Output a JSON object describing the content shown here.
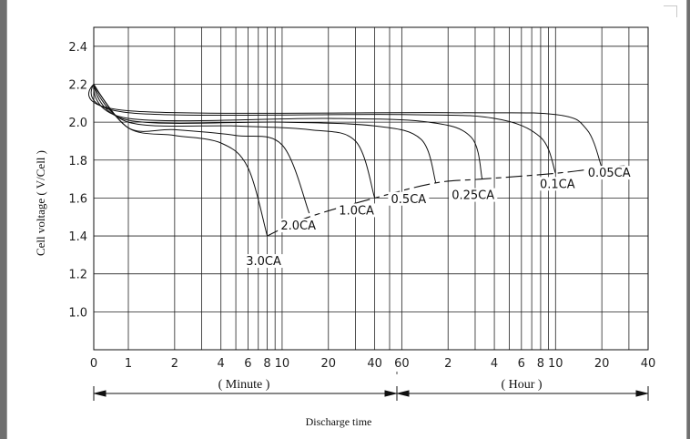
{
  "chart_data": {
    "type": "line",
    "title": "",
    "xlabel": "Discharge time",
    "ylabel": "Cell voltage ( V/Cell )",
    "ylim": [
      0.8,
      2.5
    ],
    "y_ticks": [
      "2.4",
      "2.2",
      "2.0",
      "1.8",
      "1.6",
      "1.4",
      "1.2",
      "1.0"
    ],
    "y_tick_values": [
      2.4,
      2.2,
      2.0,
      1.8,
      1.6,
      1.4,
      1.2,
      1.0
    ],
    "x_scale": "log",
    "x_units": "minutes",
    "x_ticks": [
      "0",
      "1",
      "2",
      "4",
      "6",
      "8",
      "10",
      "20",
      "40",
      "60",
      "2",
      "4",
      "6",
      "8",
      "10",
      "20",
      "40"
    ],
    "x_tick_values": [
      0,
      1,
      2,
      4,
      6,
      8,
      10,
      20,
      40,
      60,
      120,
      240,
      360,
      480,
      600,
      1200,
      2400
    ],
    "x_section_labels": [
      "( Minute )",
      "( Hour )"
    ],
    "grid": true,
    "series": [
      {
        "name": "3.0CA",
        "points": [
          [
            0,
            2.2
          ],
          [
            1,
            1.97
          ],
          [
            2,
            1.93
          ],
          [
            4,
            1.89
          ],
          [
            6,
            1.76
          ],
          [
            8,
            1.4
          ]
        ]
      },
      {
        "name": "2.0CA",
        "points": [
          [
            0,
            2.2
          ],
          [
            1,
            1.97
          ],
          [
            2,
            1.96
          ],
          [
            5,
            1.93
          ],
          [
            10,
            1.88
          ],
          [
            15,
            1.52
          ]
        ]
      },
      {
        "name": "1.0CA",
        "points": [
          [
            0,
            2.2
          ],
          [
            1,
            2.0
          ],
          [
            5,
            1.98
          ],
          [
            15,
            1.96
          ],
          [
            30,
            1.9
          ],
          [
            40,
            1.6
          ]
        ]
      },
      {
        "name": "0.5CA",
        "points": [
          [
            0,
            2.2
          ],
          [
            1,
            2.01
          ],
          [
            10,
            2.0
          ],
          [
            40,
            1.98
          ],
          [
            80,
            1.91
          ],
          [
            100,
            1.68
          ]
        ]
      },
      {
        "name": "0.25CA",
        "points": [
          [
            0,
            2.2
          ],
          [
            1,
            2.02
          ],
          [
            20,
            2.02
          ],
          [
            90,
            2.0
          ],
          [
            170,
            1.92
          ],
          [
            200,
            1.7
          ]
        ]
      },
      {
        "name": "0.1CA",
        "points": [
          [
            0,
            2.2
          ],
          [
            1,
            2.05
          ],
          [
            60,
            2.04
          ],
          [
            240,
            2.02
          ],
          [
            480,
            1.92
          ],
          [
            600,
            1.73
          ]
        ]
      },
      {
        "name": "0.05CA",
        "points": [
          [
            0,
            2.2
          ],
          [
            1,
            2.06
          ],
          [
            120,
            2.05
          ],
          [
            600,
            2.04
          ],
          [
            960,
            1.96
          ],
          [
            1200,
            1.76
          ]
        ]
      }
    ],
    "end_voltage_line": {
      "points": [
        [
          8,
          1.4
        ],
        [
          15,
          1.5
        ],
        [
          40,
          1.6
        ],
        [
          100,
          1.68
        ],
        [
          200,
          1.7
        ],
        [
          600,
          1.73
        ],
        [
          1200,
          1.76
        ],
        [
          1750,
          1.77
        ]
      ]
    }
  }
}
